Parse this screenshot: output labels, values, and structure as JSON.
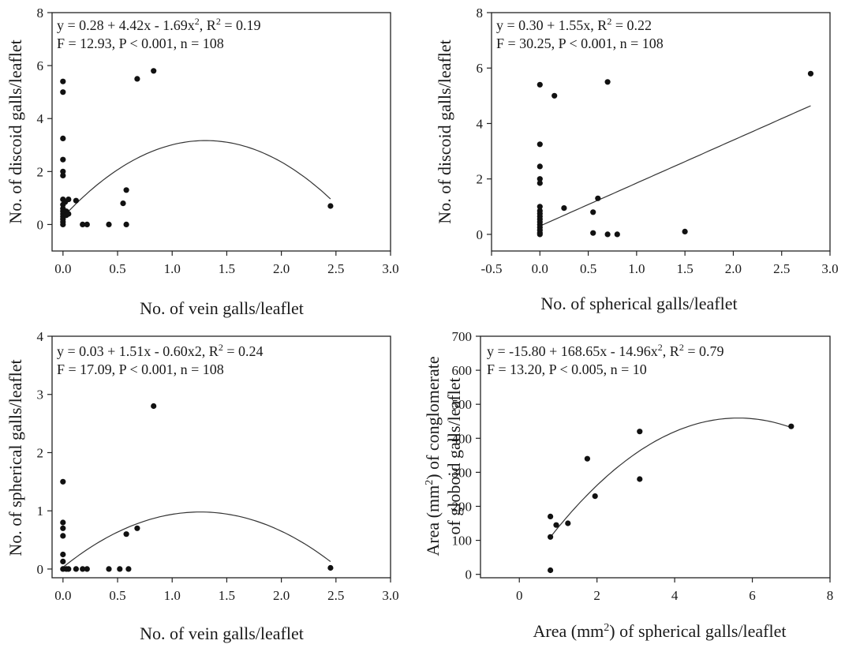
{
  "chart_data": [
    {
      "type": "scatter",
      "xlabel": "No. of vein galls/leaflet",
      "ylabel": "No. of discoid galls/leaflet",
      "xlim": [
        -0.1,
        3.0
      ],
      "ylim": [
        -1,
        8
      ],
      "xticks": [
        "0.0",
        "0.5",
        "1.0",
        "1.5",
        "2.0",
        "2.5",
        "3.0"
      ],
      "yticks": [
        "0",
        "2",
        "4",
        "6",
        "8"
      ],
      "annotation": {
        "line1": {
          "pre": "y = 0.28 + 4.42x - 1.69x",
          "sup": "2",
          "post": ", R",
          "sup2": "2",
          "post2": " = 0.19"
        },
        "line2": "F = 12.93, P < 0.001, n = 108"
      },
      "fit": {
        "kind": "quadratic",
        "a": 0.28,
        "b": 4.42,
        "c": -1.69,
        "x_range": [
          0.0,
          2.45
        ]
      },
      "points": [
        [
          0,
          5.4
        ],
        [
          0,
          5.0
        ],
        [
          0,
          3.25
        ],
        [
          0,
          2.45
        ],
        [
          0,
          2.0
        ],
        [
          0,
          1.85
        ],
        [
          0,
          0.95
        ],
        [
          0,
          0.75
        ],
        [
          0,
          0.6
        ],
        [
          0,
          0.5
        ],
        [
          0,
          0.4
        ],
        [
          0,
          0.3
        ],
        [
          0,
          0.2
        ],
        [
          0,
          0.1
        ],
        [
          0,
          0.0
        ],
        [
          0.02,
          0.85
        ],
        [
          0.03,
          0.5
        ],
        [
          0.03,
          0.35
        ],
        [
          0.05,
          0.95
        ],
        [
          0.05,
          0.4
        ],
        [
          0.12,
          0.9
        ],
        [
          0.18,
          0.0
        ],
        [
          0.22,
          0.0
        ],
        [
          0.42,
          0.0
        ],
        [
          0.55,
          0.8
        ],
        [
          0.58,
          1.3
        ],
        [
          0.58,
          0.0
        ],
        [
          0.68,
          5.5
        ],
        [
          0.83,
          5.8
        ],
        [
          2.45,
          0.7
        ]
      ]
    },
    {
      "type": "scatter",
      "xlabel": "No. of spherical galls/leaflet",
      "ylabel": "No. of discoid galls/leaflet",
      "xlim": [
        -0.5,
        3.0
      ],
      "ylim": [
        -0.6,
        8
      ],
      "xticks": [
        "-0.5",
        "0.0",
        "0.5",
        "1.0",
        "1.5",
        "2.0",
        "2.5",
        "3.0"
      ],
      "yticks": [
        "0",
        "2",
        "4",
        "6",
        "8"
      ],
      "annotation": {
        "line1": {
          "pre": "y = 0.30 + 1.55x, R",
          "sup": "2",
          "post": " = 0.22",
          "sup2": "",
          "post2": ""
        },
        "line2": "F = 30.25, P < 0.001, n = 108"
      },
      "fit": {
        "kind": "linear",
        "a": 0.3,
        "b": 1.55,
        "c": 0,
        "x_range": [
          0.0,
          2.8
        ]
      },
      "points": [
        [
          0,
          5.4
        ],
        [
          0,
          3.25
        ],
        [
          0,
          2.45
        ],
        [
          0,
          2.0
        ],
        [
          0,
          1.85
        ],
        [
          0,
          1.0
        ],
        [
          0,
          0.85
        ],
        [
          0,
          0.75
        ],
        [
          0,
          0.65
        ],
        [
          0,
          0.55
        ],
        [
          0,
          0.45
        ],
        [
          0,
          0.35
        ],
        [
          0,
          0.25
        ],
        [
          0,
          0.15
        ],
        [
          0,
          0.05
        ],
        [
          0,
          0.0
        ],
        [
          0.15,
          5.0
        ],
        [
          0.25,
          0.95
        ],
        [
          0.55,
          0.8
        ],
        [
          0.55,
          0.05
        ],
        [
          0.6,
          1.3
        ],
        [
          0.7,
          5.5
        ],
        [
          0.7,
          0.0
        ],
        [
          0.8,
          0.0
        ],
        [
          1.5,
          0.1
        ],
        [
          2.8,
          5.8
        ]
      ]
    },
    {
      "type": "scatter",
      "xlabel": "No. of vein galls/leaflet",
      "ylabel": "No. of spherical galls/leaflet",
      "xlim": [
        -0.1,
        3.0
      ],
      "ylim": [
        -0.15,
        4
      ],
      "xticks": [
        "0.0",
        "0.5",
        "1.0",
        "1.5",
        "2.0",
        "2.5",
        "3.0"
      ],
      "yticks": [
        "0",
        "1",
        "2",
        "3",
        "4"
      ],
      "annotation": {
        "line1": {
          "pre": "y = 0.03 + 1.51x - 0.60x2, R",
          "sup": "2",
          "post": " = 0.24",
          "sup2": "",
          "post2": ""
        },
        "line2": "F = 17.09, P < 0.001, n = 108"
      },
      "fit": {
        "kind": "quadratic",
        "a": 0.03,
        "b": 1.51,
        "c": -0.6,
        "x_range": [
          0.0,
          2.45
        ]
      },
      "points": [
        [
          0,
          1.5
        ],
        [
          0,
          0.8
        ],
        [
          0,
          0.7
        ],
        [
          0,
          0.57
        ],
        [
          0,
          0.25
        ],
        [
          0,
          0.13
        ],
        [
          0,
          0.0
        ],
        [
          0.03,
          0.0
        ],
        [
          0.05,
          0.0
        ],
        [
          0.12,
          0.0
        ],
        [
          0.18,
          0.0
        ],
        [
          0.22,
          0.0
        ],
        [
          0.42,
          0.0
        ],
        [
          0.52,
          0.0
        ],
        [
          0.58,
          0.6
        ],
        [
          0.6,
          0.0
        ],
        [
          0.68,
          0.7
        ],
        [
          0.83,
          2.8
        ],
        [
          2.45,
          0.02
        ]
      ]
    },
    {
      "type": "scatter",
      "xlabel": {
        "pre": "Area (mm",
        "sup": "2",
        "post": ") of spherical galls/leaflet"
      },
      "ylabel": {
        "line1_pre": "Area (mm",
        "line1_sup": "2",
        "line1_post": ") of conglomerate",
        "line2": "of globoid galls/leaflet"
      },
      "xlim": [
        -1,
        8
      ],
      "ylim": [
        -10,
        700
      ],
      "xticks": [
        "0",
        "2",
        "4",
        "6",
        "8"
      ],
      "yticks": [
        "0",
        "100",
        "200",
        "300",
        "400",
        "500",
        "600",
        "700"
      ],
      "annotation": {
        "line1": {
          "pre": "y = -15.80 + 168.65x - 14.96x",
          "sup": "2",
          "post": ", R",
          "sup2": "2",
          "post2": " = 0.79"
        },
        "line2": "F = 13.20, P < 0.005, n = 10"
      },
      "fit": {
        "kind": "quadratic",
        "a": -15.8,
        "b": 168.65,
        "c": -14.96,
        "x_range": [
          0.8,
          7.0
        ]
      },
      "points": [
        [
          0.8,
          170
        ],
        [
          0.8,
          110
        ],
        [
          0.8,
          12
        ],
        [
          0.95,
          145
        ],
        [
          1.25,
          150
        ],
        [
          1.75,
          340
        ],
        [
          1.95,
          230
        ],
        [
          3.1,
          420
        ],
        [
          3.1,
          280
        ],
        [
          7.0,
          435
        ]
      ]
    }
  ]
}
